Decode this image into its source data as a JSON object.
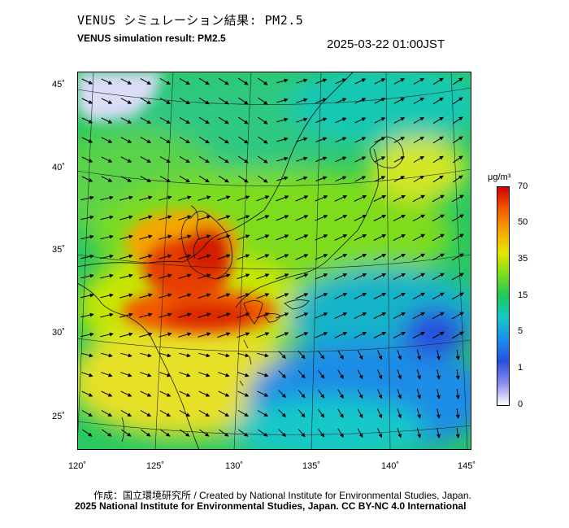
{
  "title_jp": "VENUS シミュレーション結果: PM2.5",
  "title_en": "VENUS simulation result: PM2.5",
  "timestamp": "2025-03-22 01:00JST",
  "x_ticks": [
    "120˚",
    "125˚",
    "130˚",
    "135˚",
    "140˚",
    "145˚"
  ],
  "y_ticks": [
    "45˚",
    "40˚",
    "35˚",
    "30˚",
    "25˚"
  ],
  "colorbar": {
    "unit": "μg/m³",
    "ticks": [
      "70",
      "50",
      "35",
      "15",
      "5",
      "1",
      "0"
    ],
    "colors": [
      "#d40000",
      "#f05a00",
      "#f5a600",
      "#e6e600",
      "#7ddc1e",
      "#1ec85a",
      "#14c8c8",
      "#1e8cf0",
      "#2850dc",
      "#8c8cf0",
      "#ffffff"
    ]
  },
  "credit": "作成：国立環境研究所 / Created by National Institute for Environmental Studies, Japan.",
  "copyright": "2025 National Institute for Environmental Studies, Japan. CC BY-NC 4.0 International"
}
